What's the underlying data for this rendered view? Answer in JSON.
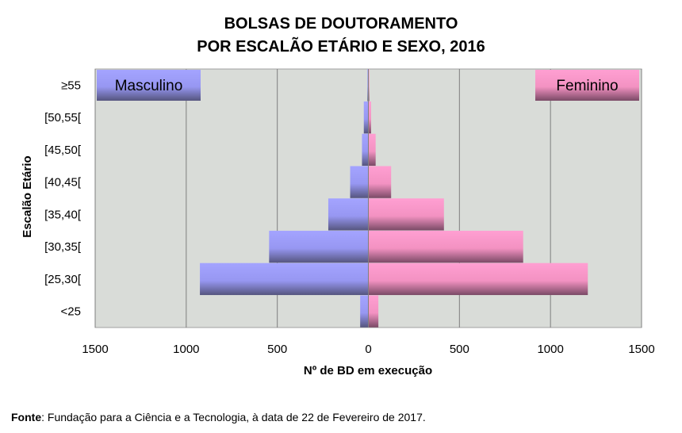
{
  "chart_data": {
    "type": "bar",
    "orientation": "horizontal",
    "title": [
      "BOLSAS DE DOUTORAMENTO",
      "POR ESCALÃO ETÁRIO E SEXO, 2016"
    ],
    "categories": [
      "<25",
      "[25,30[",
      "[30,35[",
      "[35,40[",
      "[40,45[",
      "[45,50[",
      "[50,55[",
      "≥55"
    ],
    "series": [
      {
        "name": "Masculino",
        "values": [
          45,
          925,
          545,
          220,
          100,
          35,
          25,
          5
        ],
        "color": "#9999ff",
        "side": "left"
      },
      {
        "name": "Feminino",
        "values": [
          55,
          1205,
          850,
          415,
          125,
          40,
          15,
          5
        ],
        "color": "#ff99cc",
        "side": "right"
      }
    ],
    "xlabel": "Nº de BD em execução",
    "ylabel": "Escalão Etário",
    "xlim": [
      -1500,
      1500
    ],
    "xtick_values": [
      -1500,
      -1000,
      -500,
      0,
      500,
      1000,
      1500
    ],
    "xtick_labels": [
      "1500",
      "1000",
      "500",
      "0",
      "500",
      "1000",
      "1500"
    ],
    "grid": "vertical",
    "legend": "series labels in top-left and top-right corners",
    "plot_background": "#d9dcd8"
  },
  "source": {
    "label": "Fonte",
    "text": ": Fundação para a Ciência e a Tecnologia, à data de 22 de Fevereiro de 2017."
  }
}
